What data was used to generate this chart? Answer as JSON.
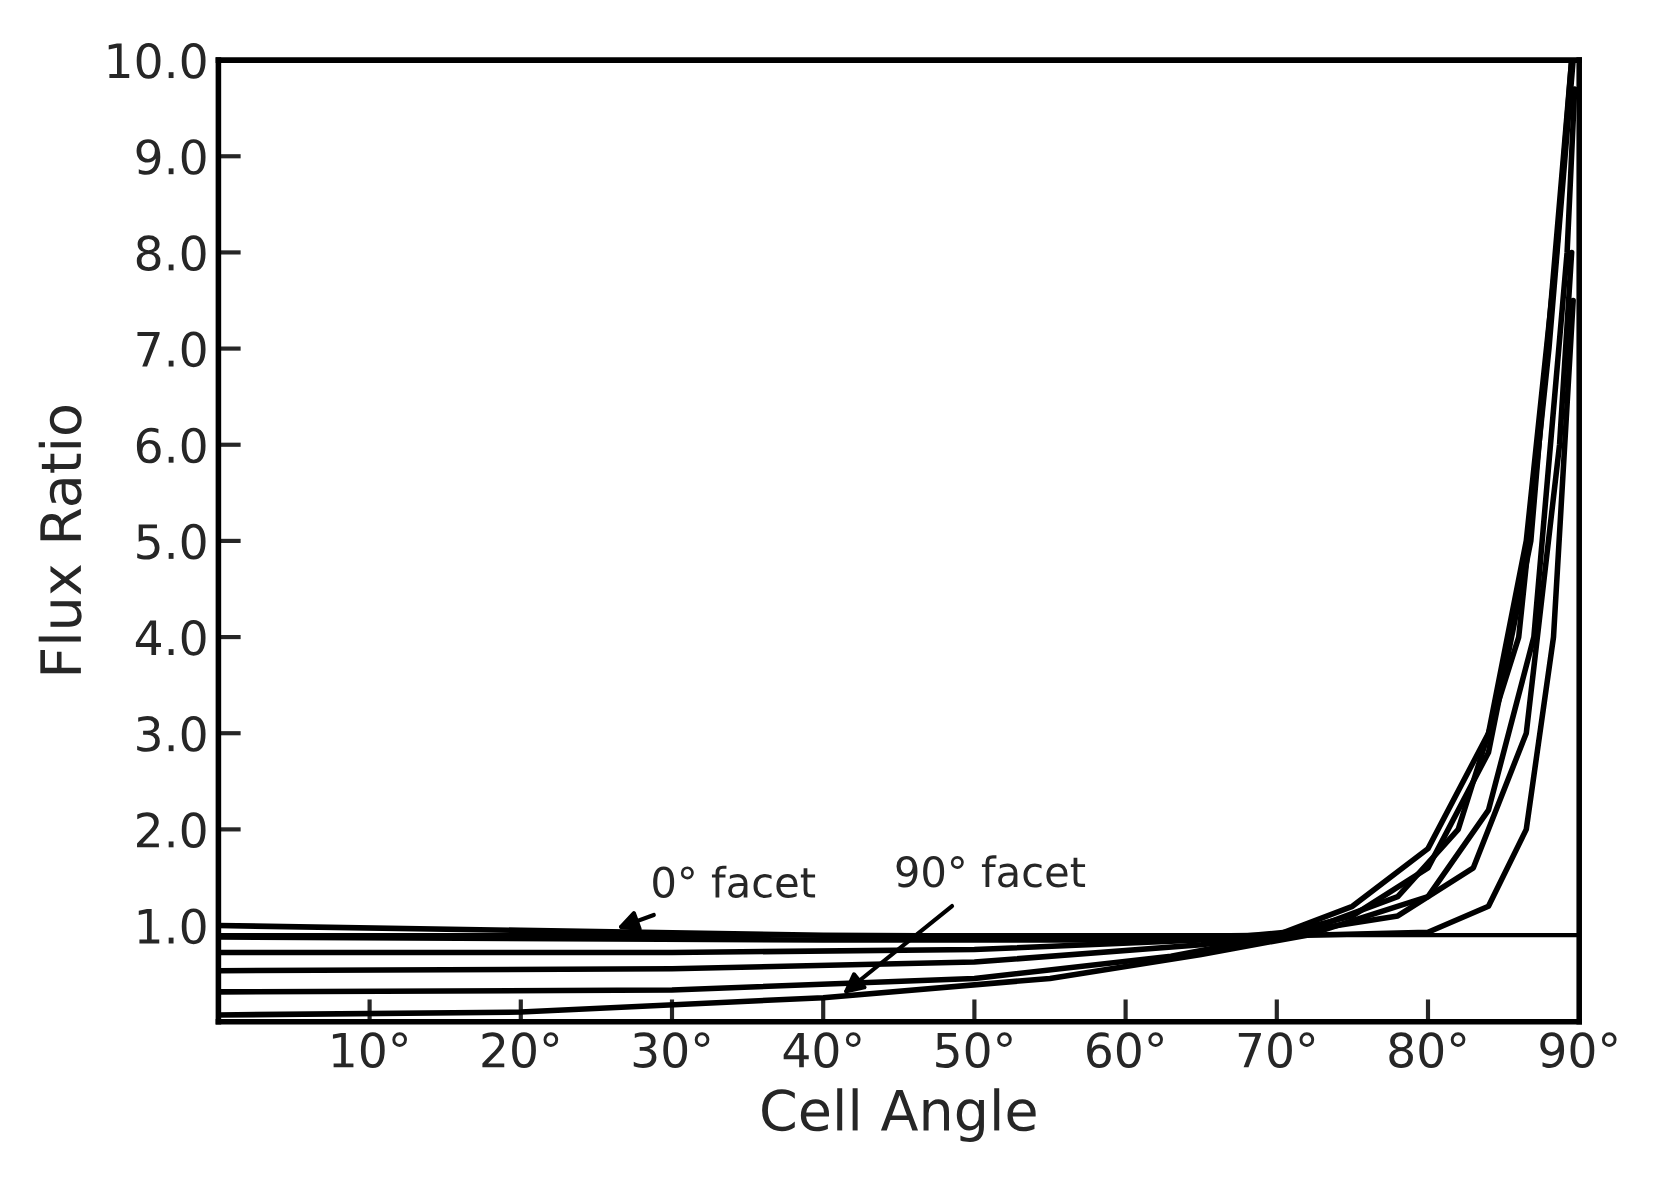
{
  "chart_data": {
    "type": "line",
    "xlabel": "Cell Angle",
    "ylabel": "Flux Ratio",
    "xlim": [
      0,
      90
    ],
    "ylim": [
      0,
      10
    ],
    "xticks": [
      {
        "value": 10,
        "label": "10°"
      },
      {
        "value": 20,
        "label": "20°"
      },
      {
        "value": 30,
        "label": "30°"
      },
      {
        "value": 40,
        "label": "40°"
      },
      {
        "value": 50,
        "label": "50°"
      },
      {
        "value": 60,
        "label": "60°"
      },
      {
        "value": 70,
        "label": "70°"
      },
      {
        "value": 80,
        "label": "80°"
      },
      {
        "value": 90,
        "label": "90°"
      }
    ],
    "yticks": [
      {
        "value": 1,
        "label": "1.0"
      },
      {
        "value": 2,
        "label": "2.0"
      },
      {
        "value": 3,
        "label": "3.0"
      },
      {
        "value": 4,
        "label": "4.0"
      },
      {
        "value": 5,
        "label": "5.0"
      },
      {
        "value": 6,
        "label": "6.0"
      },
      {
        "value": 7,
        "label": "7.0"
      },
      {
        "value": 8,
        "label": "8.0"
      },
      {
        "value": 9,
        "label": "9.0"
      },
      {
        "value": 10,
        "label": "10.0"
      }
    ],
    "grid": false,
    "legend": false,
    "marker": "none",
    "line_style": "solid",
    "series": [
      {
        "color": "#000000",
        "x": [
          0,
          20,
          40,
          60,
          70,
          75,
          80,
          84,
          86.5,
          88.5,
          89.5
        ],
        "values": [
          1.0,
          0.95,
          0.9,
          0.88,
          0.9,
          1.2,
          1.8,
          3,
          5,
          8,
          10
        ]
      },
      {
        "color": "#000000",
        "x": [
          0,
          40,
          60,
          70,
          75,
          80,
          84,
          86.8,
          89.5
        ],
        "values": [
          0.88,
          0.85,
          0.85,
          0.9,
          1.1,
          1.6,
          2.8,
          5,
          10
        ]
      },
      {
        "color": "#000000",
        "x": [
          0,
          30,
          50,
          65,
          72,
          78,
          82,
          86,
          88,
          89.6
        ],
        "values": [
          0.72,
          0.72,
          0.75,
          0.85,
          0.95,
          1.3,
          2,
          4,
          7,
          10
        ]
      },
      {
        "color": "#000000",
        "x": [
          0,
          30,
          50,
          65,
          73,
          80,
          84,
          87,
          89.2,
          89.7
        ],
        "values": [
          0.53,
          0.55,
          0.62,
          0.8,
          0.95,
          1.3,
          2.2,
          4,
          8,
          9.7
        ]
      },
      {
        "color": "#000000",
        "x": [
          0,
          30,
          50,
          63,
          72,
          78,
          83,
          86.5,
          88.7,
          89.5
        ],
        "values": [
          0.31,
          0.33,
          0.45,
          0.68,
          0.95,
          1.1,
          1.6,
          3,
          6,
          8
        ]
      },
      {
        "color": "#000000",
        "x": [
          0,
          20,
          40,
          55,
          65,
          72,
          80,
          84,
          86.5,
          88.3,
          89.6
        ],
        "values": [
          0.07,
          0.1,
          0.25,
          0.45,
          0.7,
          0.9,
          0.93,
          1.2,
          2.0,
          4,
          7.5
        ]
      }
    ],
    "ref_lines": [
      {
        "axis": "y",
        "value": 0.9,
        "color": "#000000"
      }
    ],
    "annotations": [
      {
        "text": "0° facet",
        "x": 26,
        "y": 0.95
      },
      {
        "text": "90° facet",
        "x": 41,
        "y": 0.25
      }
    ]
  }
}
